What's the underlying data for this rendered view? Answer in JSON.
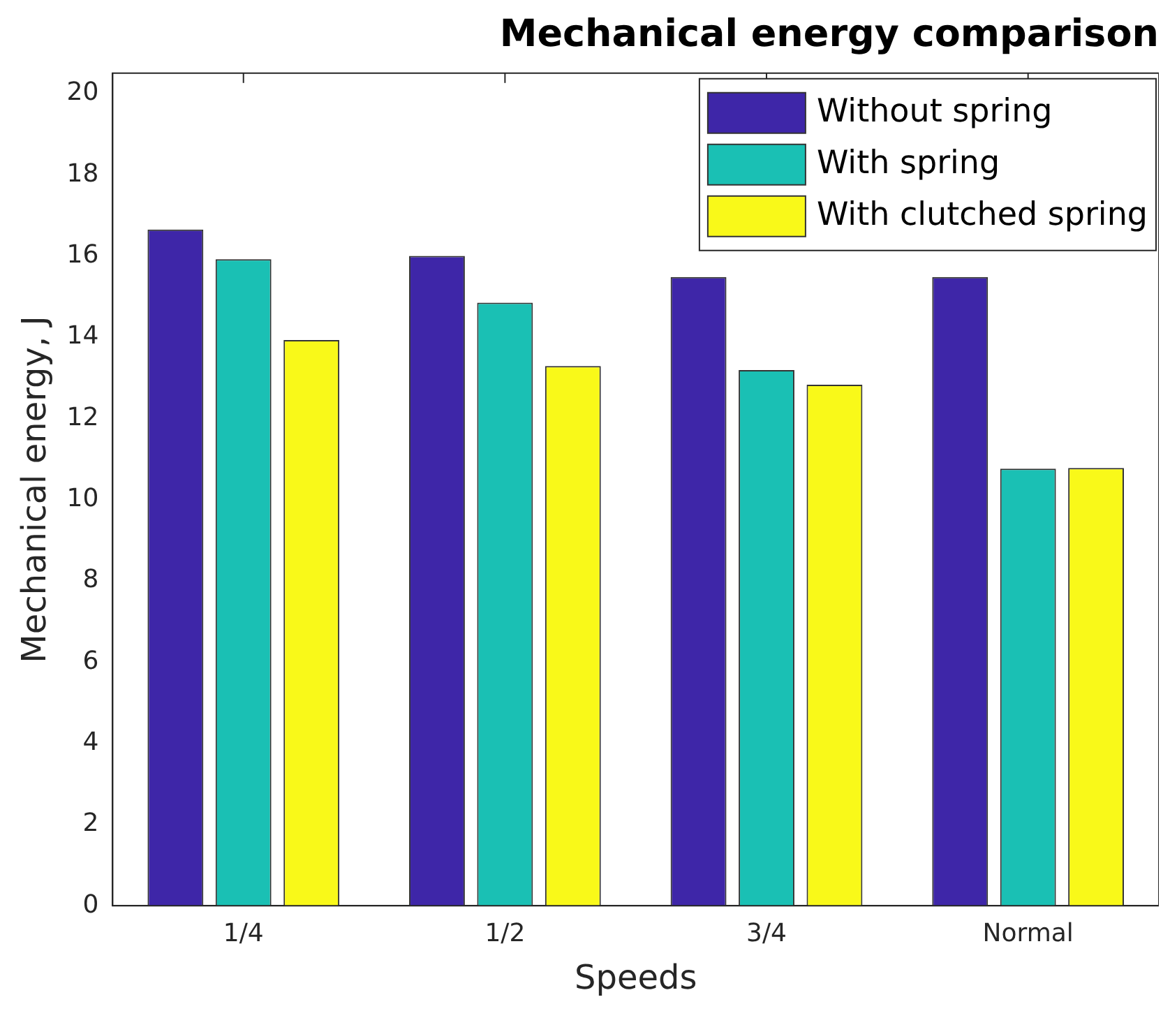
{
  "chart_data": {
    "type": "bar",
    "title": "Mechanical energy comparison",
    "xlabel": "Speeds",
    "ylabel": "Mechanical energy, J",
    "categories": [
      "1/4",
      "1/2",
      "3/4",
      "Normal"
    ],
    "series": [
      {
        "name": "Without spring",
        "color": "#3e26a8",
        "values": [
          16.65,
          16.0,
          15.48,
          15.48
        ]
      },
      {
        "name": "With spring",
        "color": "#1ac0b4",
        "values": [
          15.92,
          14.85,
          13.19,
          10.76
        ]
      },
      {
        "name": "With clutched spring",
        "color": "#f9f919",
        "values": [
          13.93,
          13.29,
          12.83,
          10.78
        ]
      }
    ],
    "ylim": [
      0,
      20.5
    ],
    "yticks": [
      0,
      2,
      4,
      6,
      8,
      10,
      12,
      14,
      16,
      18,
      20
    ],
    "grid": false,
    "legend": "top right"
  }
}
